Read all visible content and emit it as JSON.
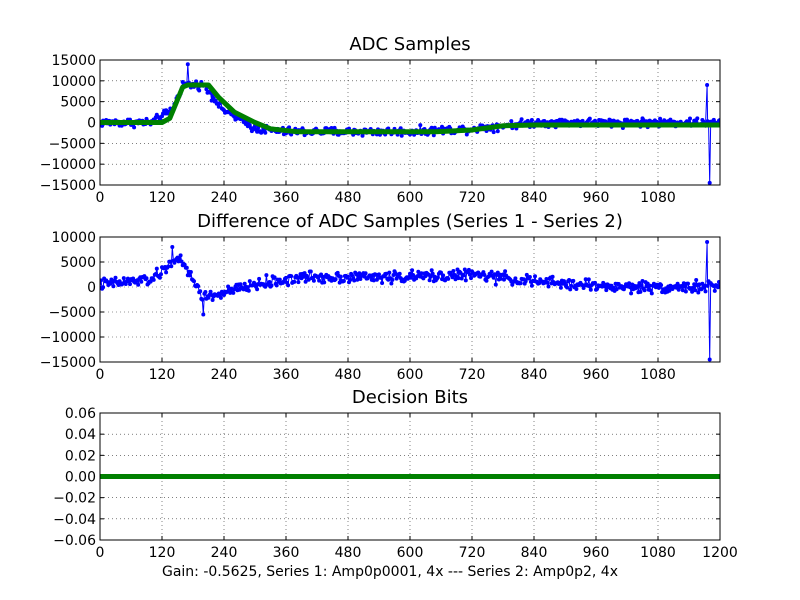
{
  "footer": {
    "text": "Gain: -0.5625, Series 1: Amp0p0001, 4x --- Series 2: Amp0p2, 4x"
  },
  "colors": {
    "samples": "#0000ff",
    "smoothed": "#008000",
    "decision": "#008000"
  },
  "chart_data": [
    {
      "type": "line",
      "title": "ADC Samples",
      "xlim": [
        0,
        1200
      ],
      "ylim": [
        -15000,
        15000
      ],
      "xticks": [
        0,
        120,
        240,
        360,
        480,
        600,
        720,
        840,
        960,
        1080
      ],
      "yticks": [
        15000,
        10000,
        5000,
        0,
        -5000,
        -10000,
        -15000
      ],
      "grid": true,
      "series": [
        {
          "kind": "noisy-samples",
          "style": "line-with-dots",
          "color": "#0000ff",
          "x_range": [
            0,
            1200
          ],
          "envelope": [
            [
              0,
              0
            ],
            [
              100,
              0
            ],
            [
              140,
              3000
            ],
            [
              160,
              9000
            ],
            [
              200,
              9000
            ],
            [
              240,
              3000
            ],
            [
              300,
              -1500
            ],
            [
              360,
              -2200
            ],
            [
              600,
              -2200
            ],
            [
              720,
              -1500
            ],
            [
              840,
              0
            ],
            [
              1200,
              0
            ]
          ],
          "noise_amplitude": 1500,
          "peaks": [
            [
              170,
              14000
            ],
            [
              1180,
              -14500
            ],
            [
              1175,
              9000
            ]
          ]
        },
        {
          "kind": "smoothed-fit",
          "style": "thick-line",
          "color": "#008000",
          "points": [
            [
              0,
              0
            ],
            [
              120,
              0
            ],
            [
              135,
              1000
            ],
            [
              160,
              8500
            ],
            [
              170,
              9000
            ],
            [
              210,
              9000
            ],
            [
              230,
              6000
            ],
            [
              260,
              2500
            ],
            [
              300,
              0
            ],
            [
              330,
              -1500
            ],
            [
              380,
              -2200
            ],
            [
              650,
              -2200
            ],
            [
              720,
              -1800
            ],
            [
              780,
              -800
            ],
            [
              840,
              -600
            ],
            [
              1200,
              -600
            ]
          ]
        }
      ]
    },
    {
      "type": "line",
      "title": "Difference of ADC Samples (Series 1 - Series 2)",
      "xlim": [
        0,
        1200
      ],
      "ylim": [
        -15000,
        10000
      ],
      "xticks": [
        0,
        120,
        240,
        360,
        480,
        600,
        720,
        840,
        960,
        1080
      ],
      "yticks": [
        10000,
        5000,
        0,
        -5000,
        -10000,
        -15000
      ],
      "grid": true,
      "series": [
        {
          "kind": "noisy-samples",
          "style": "line-with-dots",
          "color": "#0000ff",
          "x_range": [
            0,
            1200
          ],
          "envelope": [
            [
              0,
              500
            ],
            [
              100,
              1500
            ],
            [
              120,
              3000
            ],
            [
              150,
              6000
            ],
            [
              170,
              3000
            ],
            [
              200,
              -2000
            ],
            [
              230,
              -1500
            ],
            [
              300,
              500
            ],
            [
              400,
              2000
            ],
            [
              600,
              2000
            ],
            [
              720,
              2500
            ],
            [
              850,
              1000
            ],
            [
              1000,
              0
            ],
            [
              1200,
              0
            ]
          ],
          "noise_amplitude": 1700,
          "peaks": [
            [
              140,
              8000
            ],
            [
              1180,
              -14500
            ],
            [
              1175,
              9000
            ],
            [
              200,
              -5500
            ]
          ]
        }
      ]
    },
    {
      "type": "line",
      "title": "Decision Bits",
      "xlim": [
        0,
        1200
      ],
      "ylim": [
        -0.06,
        0.06
      ],
      "xticks": [
        0,
        120,
        240,
        360,
        480,
        600,
        720,
        840,
        960,
        1080,
        1200
      ],
      "yticks": [
        "0.06",
        "0.04",
        "0.02",
        "0.00",
        "−0.02",
        "−0.04",
        "−0.06"
      ],
      "ytick_values": [
        0.06,
        0.04,
        0.02,
        0.0,
        -0.02,
        -0.04,
        -0.06
      ],
      "grid": true,
      "series": [
        {
          "kind": "constant",
          "style": "thick-line",
          "color": "#008000",
          "points": [
            [
              0,
              0
            ],
            [
              1200,
              0
            ]
          ]
        }
      ]
    }
  ]
}
